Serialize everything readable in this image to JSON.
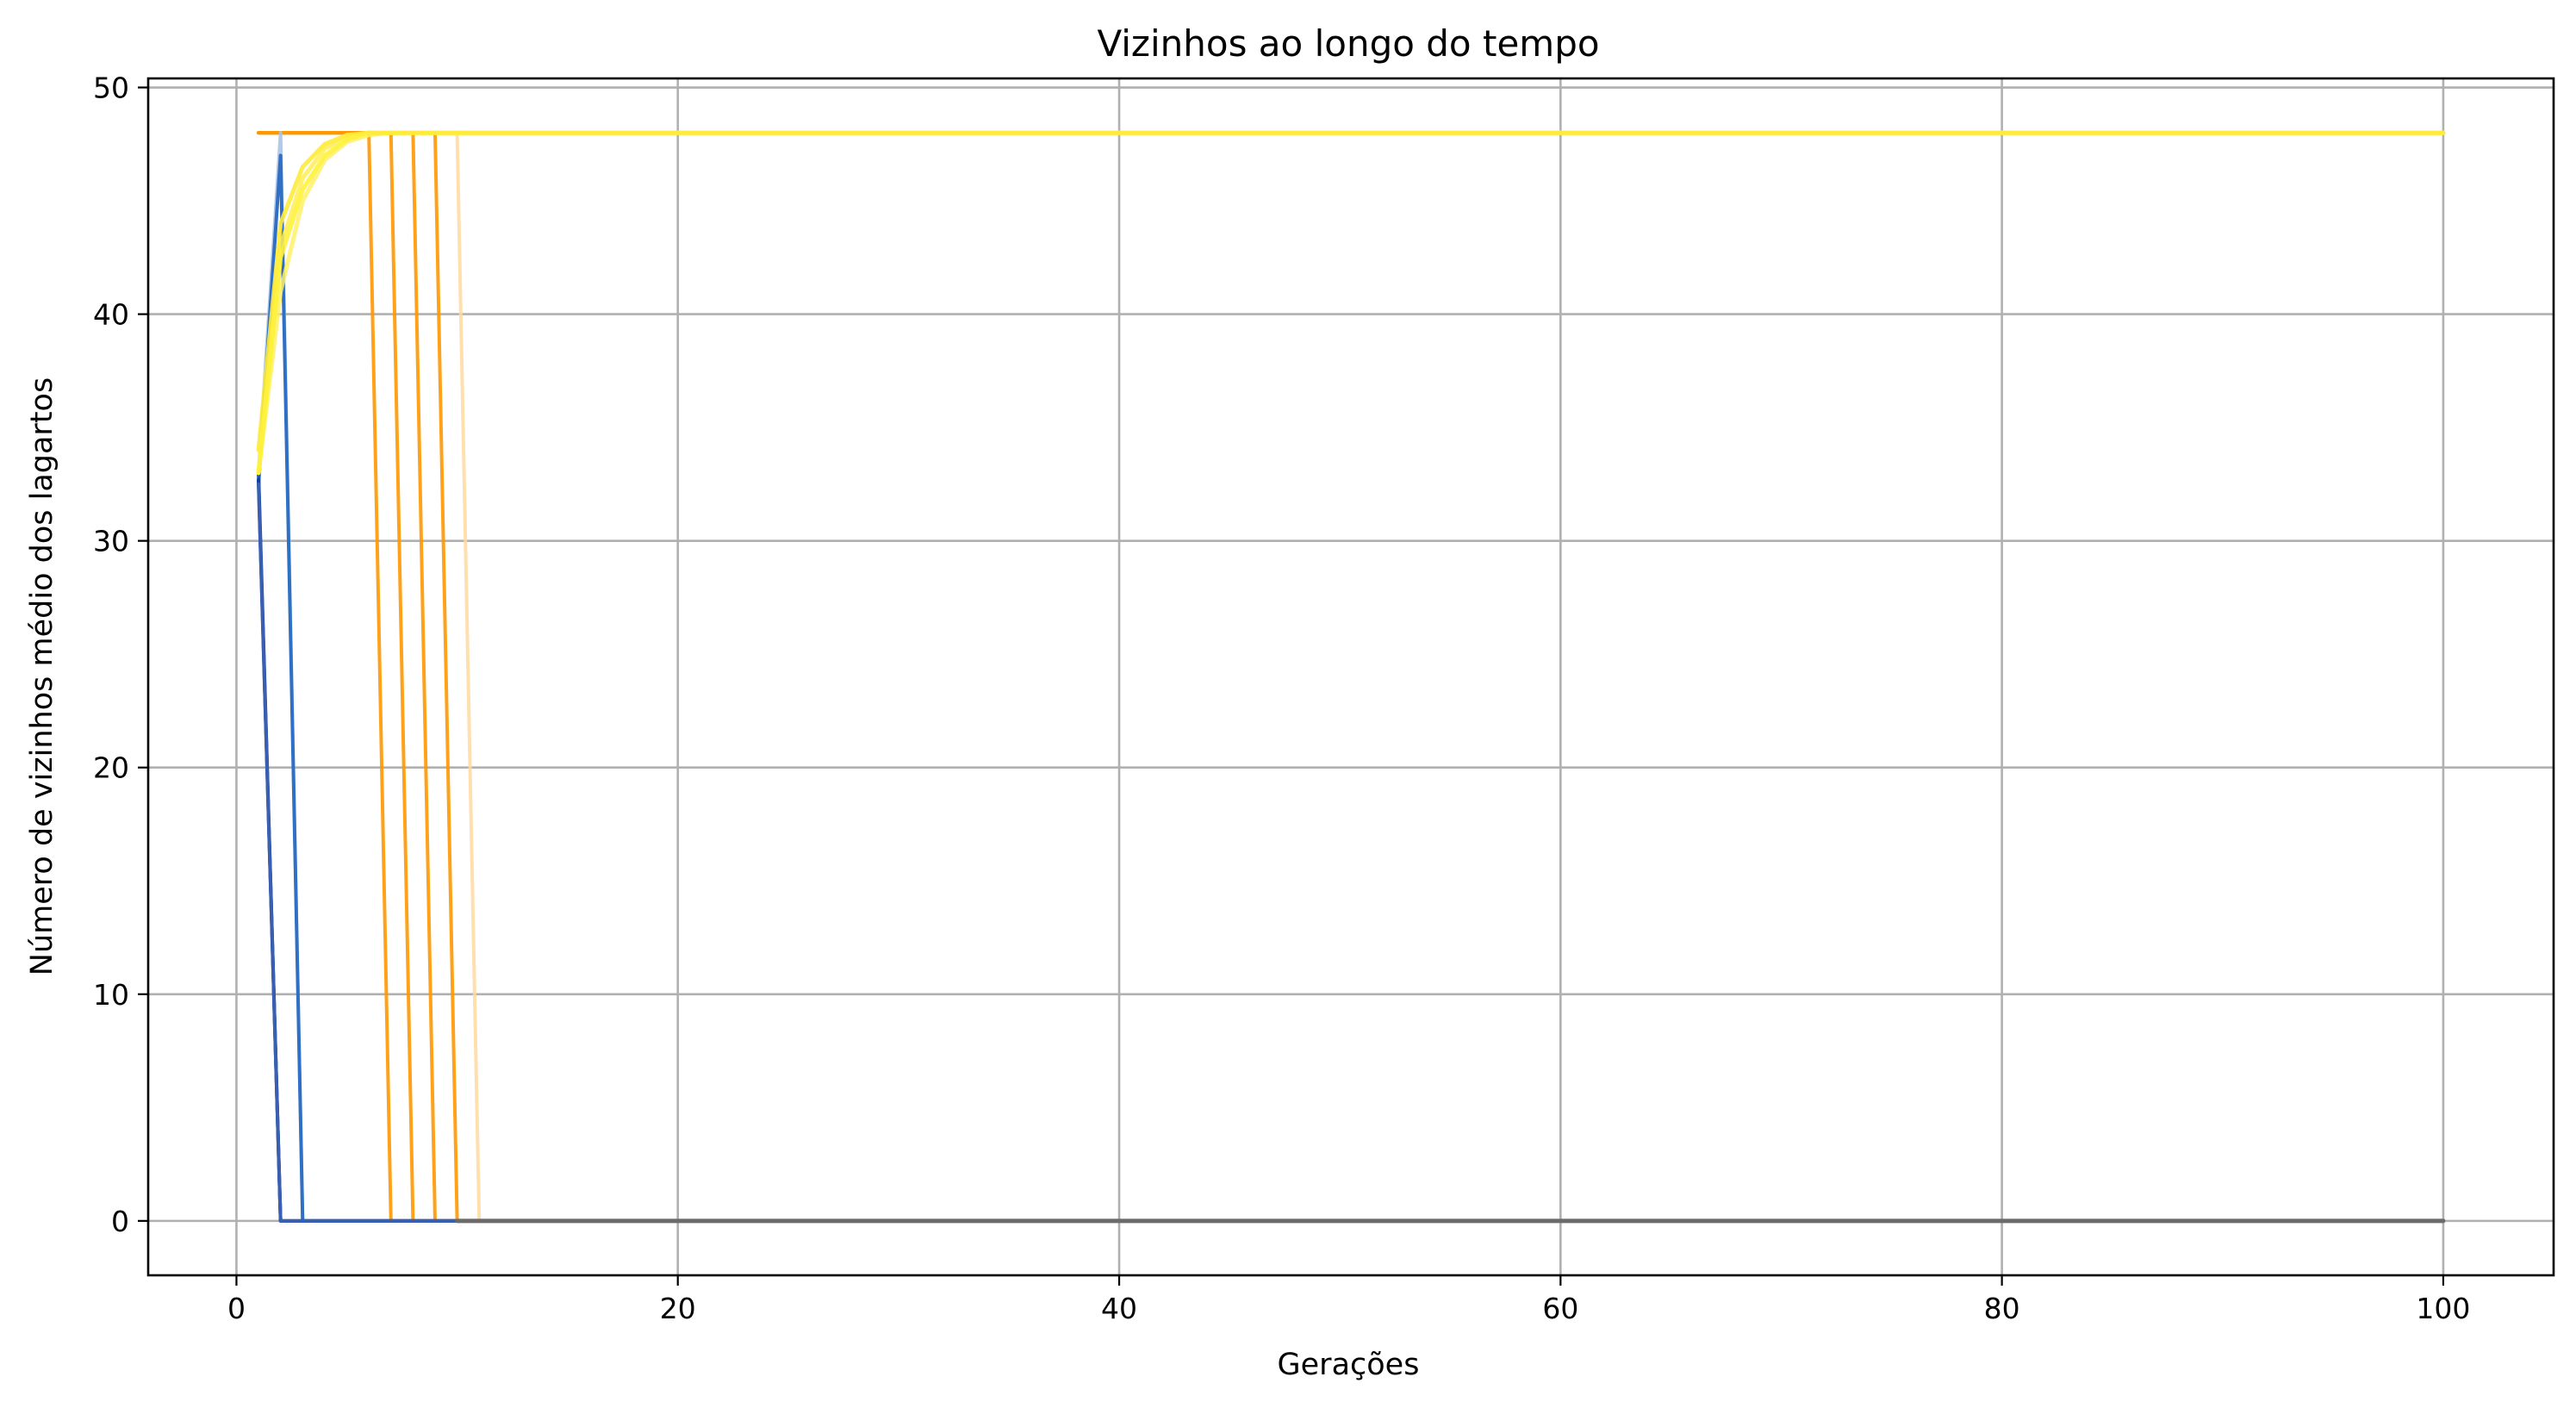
{
  "chart_data": {
    "type": "line",
    "title": "Vizinhos ao longo do tempo",
    "xlabel": "Gerações",
    "ylabel": "Número de vizinhos médio dos lagartos",
    "xlim": [
      -4,
      105
    ],
    "ylim": [
      -2.4,
      50.4
    ],
    "xticks": [
      0,
      20,
      40,
      60,
      80,
      100
    ],
    "yticks": [
      0,
      10,
      20,
      30,
      40,
      50
    ],
    "grid": true,
    "legend": "none",
    "series": [
      {
        "color": "#ff8c00",
        "opacity": 0.85,
        "width": 4,
        "points": [
          [
            1,
            48
          ],
          [
            100,
            48
          ]
        ]
      },
      {
        "color": "#ffd9a0",
        "opacity": 0.85,
        "width": 4,
        "points": [
          [
            1,
            48
          ],
          [
            10,
            48
          ],
          [
            11,
            0
          ],
          [
            100,
            0
          ]
        ]
      },
      {
        "color": "#ff9800",
        "opacity": 0.9,
        "width": 4,
        "points": [
          [
            1,
            48
          ],
          [
            9,
            48
          ],
          [
            10,
            0
          ],
          [
            100,
            0
          ]
        ]
      },
      {
        "color": "#ff9800",
        "opacity": 0.9,
        "width": 4,
        "points": [
          [
            1,
            48
          ],
          [
            8,
            48
          ],
          [
            9,
            0
          ],
          [
            100,
            0
          ]
        ]
      },
      {
        "color": "#ff9800",
        "opacity": 0.9,
        "width": 4,
        "points": [
          [
            1,
            48
          ],
          [
            7,
            48
          ],
          [
            8,
            0
          ],
          [
            100,
            0
          ]
        ]
      },
      {
        "color": "#ff9800",
        "opacity": 0.9,
        "width": 4,
        "points": [
          [
            1,
            48
          ],
          [
            6,
            48
          ],
          [
            7,
            0
          ],
          [
            100,
            0
          ]
        ]
      },
      {
        "color": "#aac4e8",
        "opacity": 0.9,
        "width": 4,
        "points": [
          [
            1,
            33
          ],
          [
            2,
            48
          ],
          [
            3,
            0
          ],
          [
            100,
            0
          ]
        ]
      },
      {
        "color": "#2f6fc4",
        "opacity": 1,
        "width": 4,
        "points": [
          [
            1,
            32.5
          ],
          [
            2,
            47
          ],
          [
            3,
            0
          ],
          [
            100,
            0
          ]
        ]
      },
      {
        "color": "#1e56b8",
        "opacity": 1,
        "width": 4,
        "points": [
          [
            1,
            33
          ],
          [
            2,
            0
          ],
          [
            100,
            0
          ]
        ]
      },
      {
        "color": "#0d3fa6",
        "opacity": 1,
        "width": 4,
        "points": [
          [
            1,
            32.7
          ],
          [
            2,
            0
          ],
          [
            100,
            0
          ]
        ]
      },
      {
        "color": "#3a5fb0",
        "opacity": 1,
        "width": 4,
        "points": [
          [
            1,
            32.5
          ],
          [
            2,
            0
          ],
          [
            100,
            0
          ]
        ]
      },
      {
        "color": "#6b6b6b",
        "opacity": 1,
        "width": 5,
        "points": [
          [
            10,
            0
          ],
          [
            100,
            0
          ]
        ]
      },
      {
        "color": "#fff066",
        "opacity": 0.85,
        "width": 5,
        "points": [
          [
            1,
            33
          ],
          [
            2,
            41
          ],
          [
            3,
            45
          ],
          [
            4,
            46.8
          ],
          [
            5,
            47.6
          ],
          [
            6,
            47.9
          ],
          [
            7,
            48
          ],
          [
            100,
            48
          ]
        ]
      },
      {
        "color": "#ffee55",
        "opacity": 0.85,
        "width": 5,
        "points": [
          [
            1,
            33
          ],
          [
            2,
            43
          ],
          [
            3,
            46
          ],
          [
            4,
            47.3
          ],
          [
            5,
            47.8
          ],
          [
            6,
            48
          ],
          [
            100,
            48
          ]
        ]
      },
      {
        "color": "#ffeb3b",
        "opacity": 0.9,
        "width": 5,
        "points": [
          [
            1,
            34
          ],
          [
            2,
            44
          ],
          [
            3,
            46.5
          ],
          [
            4,
            47.5
          ],
          [
            5,
            47.9
          ],
          [
            6,
            48
          ],
          [
            100,
            48
          ]
        ]
      },
      {
        "color": "#fff23a",
        "opacity": 0.9,
        "width": 5,
        "points": [
          [
            1,
            33
          ],
          [
            2,
            42.5
          ],
          [
            3,
            45.5
          ],
          [
            4,
            47
          ],
          [
            5,
            47.7
          ],
          [
            6,
            48
          ],
          [
            100,
            48
          ]
        ]
      },
      {
        "color": "#ffeb3b",
        "opacity": 1,
        "width": 5,
        "points": [
          [
            6,
            48
          ],
          [
            100,
            48
          ]
        ]
      }
    ]
  }
}
